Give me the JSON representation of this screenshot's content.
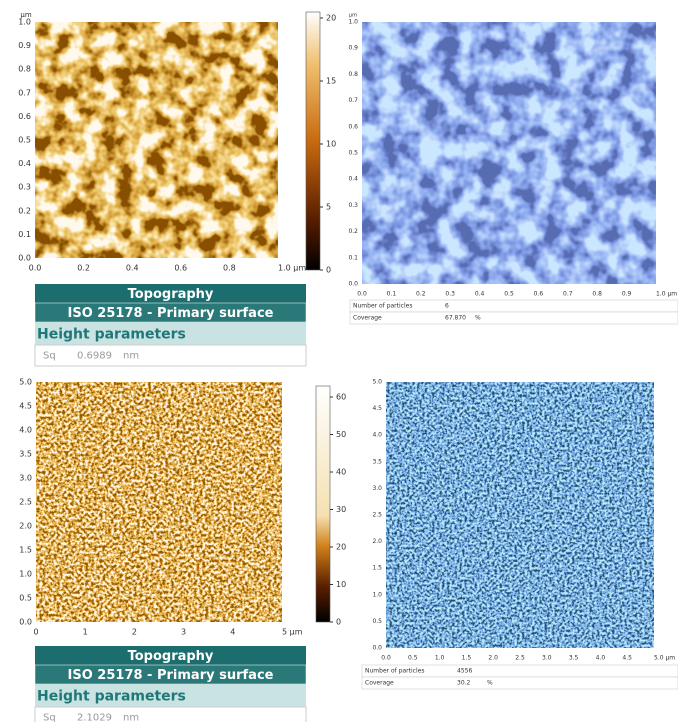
{
  "panels": [
    {
      "y_unit": "µm",
      "y_ticks": [
        "0.0",
        "0.1",
        "0.2",
        "0.3",
        "0.4",
        "0.5",
        "0.6",
        "0.7",
        "0.8",
        "0.9",
        "1.0"
      ],
      "x_ticks": [
        "0.0",
        "0.2",
        "0.4",
        "0.6",
        "0.8",
        "1.0 µm"
      ],
      "colorbar_ticks": [
        "0",
        "5",
        "10",
        "15",
        "20"
      ],
      "table": {
        "title": "Topography",
        "subtitle": "ISO 25178 - Primary surface",
        "section": "Height parameters",
        "param": "Sq",
        "value": "0.6989",
        "unit": "nm"
      }
    },
    {
      "y_unit": "µm",
      "y_ticks": [
        "0.0",
        "0.1",
        "0.2",
        "0.3",
        "0.4",
        "0.5",
        "0.6",
        "0.7",
        "0.8",
        "0.9",
        "1.0"
      ],
      "x_ticks": [
        "0.0",
        "0.1",
        "0.2",
        "0.3",
        "0.4",
        "0.5",
        "0.6",
        "0.7",
        "0.8",
        "0.9",
        "1.0 µm"
      ],
      "rows": [
        {
          "label": "Number of particles",
          "value": "6"
        },
        {
          "label": "Coverage",
          "value": "67.870",
          "unit": "%"
        }
      ]
    },
    {
      "y_ticks": [
        "0.0",
        "0.5",
        "1.0",
        "1.5",
        "2.0",
        "2.5",
        "3.0",
        "3.5",
        "4.0",
        "4.5",
        "5.0"
      ],
      "x_ticks": [
        "0",
        "1",
        "2",
        "3",
        "4",
        "5 µm"
      ],
      "colorbar_ticks": [
        "0",
        "10",
        "20",
        "30",
        "40",
        "50",
        "60"
      ],
      "table": {
        "title": "Topography",
        "subtitle": "ISO 25178 - Primary surface",
        "section": "Height parameters",
        "param": "Sq",
        "value": "2.1029",
        "unit": "nm"
      }
    },
    {
      "y_ticks": [
        "0.0",
        "0.5",
        "1.0",
        "1.5",
        "2.0",
        "2.5",
        "3.0",
        "3.5",
        "4.0",
        "4.5",
        "5.0"
      ],
      "x_ticks": [
        "0.0",
        "0.5",
        "1.0",
        "1.5",
        "2.0",
        "2.5",
        "3.0",
        "3.5",
        "4.0",
        "4.5",
        "5.0 µm"
      ],
      "rows": [
        {
          "label": "Number of particles",
          "value": "4556"
        },
        {
          "label": "Coverage",
          "value": "30.2",
          "unit": "%"
        }
      ]
    }
  ]
}
